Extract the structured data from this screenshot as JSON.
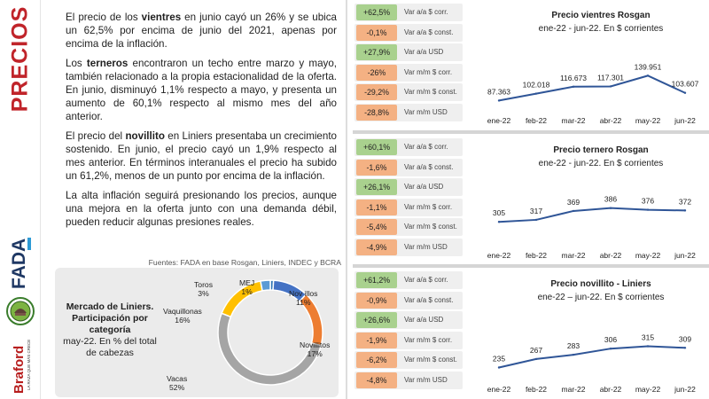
{
  "sidebar": {
    "title": "PRECIOS",
    "logo_fada": "FADA",
    "logo_braford": "Braford",
    "logo_braford_tag": "LA RAZA QUE MÁS CRECE"
  },
  "text": {
    "p1_a": "El precio de los ",
    "p1_b": "vientres",
    "p1_c": " en junio cayó un 26% y se ubica un 62,5% por encima de junio del 2021, apenas por encima de la inflación.",
    "p2_a": "Los ",
    "p2_b": "terneros",
    "p2_c": " encontraron un techo entre marzo y mayo, también relacionado a la propia estacionalidad de la oferta. En junio, disminuyó 1,1% respecto a mayo, y presenta un aumento de 60,1% respecto al mismo mes del año anterior.",
    "p3_a": "El precio del ",
    "p3_b": "novillito",
    "p3_c": " en Liniers presentaba un crecimiento sostenido. En junio, el precio cayó un 1,9% respecto al mes anterior. En términos interanuales el precio ha subido un 61,2%, menos de un punto por encima de la inflación.",
    "p4": "La alta inflación seguirá presionando los precios, aunque una mejora en la oferta junto con una demanda débil, pueden reducir algunas presiones reales.",
    "sources": "Fuentes: FADA en base Rosgan, Liniers, INDEC y BCRA"
  },
  "donut": {
    "title_bold": "Mercado de Liniers. Participación por categoría",
    "title_rest": "may-22. En % del total de cabezas",
    "slices": [
      {
        "name": "MEJ",
        "value": 1,
        "label": "1%",
        "color": "#2e75b6"
      },
      {
        "name": "Nov illos",
        "value": 11,
        "label": "11%",
        "color": "#4472c4"
      },
      {
        "name": "Novillitos",
        "value": 17,
        "label": "17%",
        "color": "#ed7d31"
      },
      {
        "name": "Vacas",
        "value": 52,
        "label": "52%",
        "color": "#a5a5a5"
      },
      {
        "name": "Vaquillonas",
        "value": 16,
        "label": "16%",
        "color": "#ffc000"
      },
      {
        "name": "Toros",
        "value": 3,
        "label": "3%",
        "color": "#5b9bd5"
      }
    ]
  },
  "stats": [
    {
      "value": "+62,5%",
      "label": "Var a/a $ corr.",
      "color": "green"
    },
    {
      "value": "-0,1%",
      "label": "Var a/a $ const.",
      "color": "orange"
    },
    {
      "value": "+27,9%",
      "label": "Var a/a USD",
      "color": "green"
    },
    {
      "value": "-26%",
      "label": "Var m/m $ corr.",
      "color": "orange"
    },
    {
      "value": "-29,2%",
      "label": "Var m/m $ const.",
      "color": "orange"
    },
    {
      "value": "-28,8%",
      "label": "Var m/m USD",
      "color": "orange"
    },
    {
      "value": "+60,1%",
      "label": "Var a/a $ corr.",
      "color": "green"
    },
    {
      "value": "-1,6%",
      "label": "Var a/a $ const.",
      "color": "orange"
    },
    {
      "value": "+26,1%",
      "label": "Var a/a USD",
      "color": "green"
    },
    {
      "value": "-1,1%",
      "label": "Var m/m $ corr.",
      "color": "orange"
    },
    {
      "value": "-5,4%",
      "label": "Var m/m $ const.",
      "color": "orange"
    },
    {
      "value": "-4,9%",
      "label": "Var m/m USD",
      "color": "orange"
    },
    {
      "value": "+61,2%",
      "label": "Var a/a $ corr.",
      "color": "green"
    },
    {
      "value": "-0,9%",
      "label": "Var a/a $ const.",
      "color": "orange"
    },
    {
      "value": "+26,6%",
      "label": "Var a/a USD",
      "color": "green"
    },
    {
      "value": "-1,9%",
      "label": "Var m/m $ corr.",
      "color": "orange"
    },
    {
      "value": "-6,2%",
      "label": "Var m/m $ const.",
      "color": "orange"
    },
    {
      "value": "-4,8%",
      "label": "Var m/m USD",
      "color": "orange"
    }
  ],
  "colors": {
    "line": "#2f5597",
    "green": "#a9d18e",
    "orange": "#f4b183",
    "title_red": "#c0242a"
  },
  "chart_data": [
    {
      "type": "line",
      "title": "Precio vientres Rosgan",
      "subtitle": "ene-22 - jun-22. En $ corrientes",
      "categories": [
        "ene-22",
        "feb-22",
        "mar-22",
        "abr-22",
        "may-22",
        "jun-22"
      ],
      "values": [
        87363,
        102018,
        116673,
        117301,
        139951,
        103607
      ],
      "labels": [
        "87.363",
        "102.018",
        "116.673",
        "117.301",
        "139.951",
        "103.607"
      ],
      "ylim": [
        60000,
        150000
      ],
      "grid": false,
      "legend": "none"
    },
    {
      "type": "line",
      "title": "Precio ternero Rosgan",
      "subtitle": "ene-22 - jun-22. En $ corrientes",
      "categories": [
        "ene-22",
        "feb-22",
        "mar-22",
        "abr-22",
        "may-22",
        "jun-22"
      ],
      "values": [
        305,
        317,
        369,
        386,
        376,
        372
      ],
      "labels": [
        "305",
        "317",
        "369",
        "386",
        "376",
        "372"
      ],
      "ylim": [
        150,
        400
      ],
      "grid": false,
      "legend": "none"
    },
    {
      "type": "line",
      "title": "Precio novillito - Liniers",
      "subtitle": "ene-22 – jun-22. En $ corrientes",
      "categories": [
        "ene-22",
        "feb-22",
        "mar-22",
        "abr-22",
        "may-22",
        "jun-22"
      ],
      "values": [
        235,
        267,
        283,
        306,
        315,
        309
      ],
      "labels": [
        "235",
        "267",
        "283",
        "306",
        "315",
        "309"
      ],
      "ylim": [
        180,
        340
      ],
      "grid": false,
      "legend": "none"
    }
  ]
}
